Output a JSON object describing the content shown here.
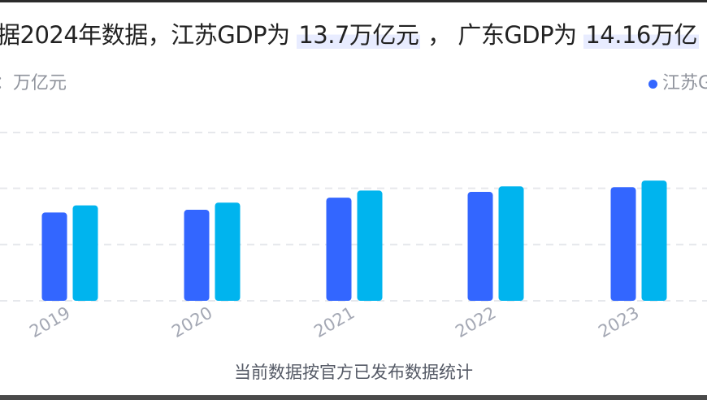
{
  "headline": {
    "prefix": "据2024年数据，江苏GDP为 ",
    "js_value": "13.7万亿元",
    "middle": " ， 广东GDP为 ",
    "gd_value": "14.16万亿"
  },
  "unit_label": "：万亿元",
  "legend_text": "江苏G",
  "footnote": "当前数据按官方已发布数据统计",
  "colors": {
    "jiangsu": "#3366ff",
    "guangdong": "#00b4ee",
    "grid": "#e6e8ec"
  },
  "chart_data": {
    "type": "bar",
    "title": "",
    "xlabel": "",
    "ylabel": "万亿元",
    "categories": [
      "2019",
      "2020",
      "2021",
      "2022",
      "2023"
    ],
    "series": [
      {
        "name": "江苏GDP",
        "values": [
          9.96,
          10.27,
          11.64,
          12.29,
          12.82
        ]
      },
      {
        "name": "广东GDP",
        "values": [
          10.77,
          11.08,
          12.44,
          12.91,
          13.57
        ]
      }
    ],
    "ylim": [
      0,
      16
    ],
    "grid": true,
    "legend_position": "top-right"
  }
}
